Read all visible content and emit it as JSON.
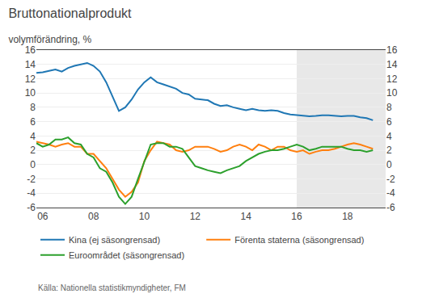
{
  "chart_data": {
    "type": "line",
    "title": "Bruttonationalprodukt",
    "subtitle": "volymförändring, %",
    "source": "Källa: Nationella statistikmyndigheter, FM",
    "forecast_start": 2016.0,
    "xlim": [
      2005.75,
      2019.5
    ],
    "xticks": [
      {
        "value": 2006,
        "label": "06"
      },
      {
        "value": 2008,
        "label": "08"
      },
      {
        "value": 2010,
        "label": "10"
      },
      {
        "value": 2012,
        "label": "12"
      },
      {
        "value": 2014,
        "label": "14"
      },
      {
        "value": 2016,
        "label": "16"
      },
      {
        "value": 2018,
        "label": "18"
      }
    ],
    "ylim": [
      -6,
      16
    ],
    "yticks": [
      -6,
      -4,
      -2,
      0,
      2,
      4,
      6,
      8,
      10,
      12,
      14,
      16
    ],
    "y2lim": [
      -6,
      16
    ],
    "y2ticks": [
      -6,
      -4,
      -2,
      0,
      2,
      4,
      6,
      8,
      10,
      12,
      14,
      16
    ],
    "grid": true,
    "legend": "bottom",
    "x": [
      2005.75,
      2006.0,
      2006.25,
      2006.5,
      2006.75,
      2007.0,
      2007.25,
      2007.5,
      2007.75,
      2008.0,
      2008.25,
      2008.5,
      2008.75,
      2009.0,
      2009.25,
      2009.5,
      2009.75,
      2010.0,
      2010.25,
      2010.5,
      2010.75,
      2011.0,
      2011.25,
      2011.5,
      2011.75,
      2012.0,
      2012.25,
      2012.5,
      2012.75,
      2013.0,
      2013.25,
      2013.5,
      2013.75,
      2014.0,
      2014.25,
      2014.5,
      2014.75,
      2015.0,
      2015.25,
      2015.5,
      2015.75,
      2016.0,
      2016.25,
      2016.5,
      2016.75,
      2017.0,
      2017.25,
      2017.5,
      2017.75,
      2018.0,
      2018.25,
      2018.5,
      2018.75,
      2019.0
    ],
    "series": [
      {
        "name": "Kina (ej säsongrensad)",
        "values": [
          12.8,
          12.9,
          13.1,
          13.3,
          13.0,
          13.5,
          13.8,
          14.0,
          14.2,
          13.8,
          13.0,
          11.5,
          9.5,
          7.5,
          8.0,
          9.1,
          10.5,
          11.5,
          12.2,
          11.5,
          11.2,
          10.9,
          10.6,
          10.0,
          9.8,
          9.2,
          9.1,
          9.0,
          8.5,
          8.2,
          8.3,
          8.0,
          7.8,
          7.6,
          7.8,
          7.6,
          7.5,
          7.6,
          7.5,
          7.2,
          7.0,
          6.9,
          6.8,
          6.75,
          6.8,
          6.9,
          6.9,
          6.8,
          6.75,
          6.8,
          6.8,
          6.6,
          6.5,
          6.2
        ]
      },
      {
        "name": "Förenta staterna (säsongrensad)",
        "values": [
          3.2,
          3.0,
          2.8,
          2.5,
          2.8,
          3.0,
          2.5,
          2.5,
          1.5,
          1.5,
          0.5,
          -0.5,
          -2.0,
          -3.5,
          -4.5,
          -3.8,
          -2.5,
          0.5,
          2.0,
          3.2,
          3.0,
          2.8,
          2.0,
          1.8,
          2.0,
          2.5,
          2.5,
          2.5,
          2.2,
          1.8,
          2.0,
          2.5,
          2.8,
          2.5,
          2.0,
          2.8,
          2.5,
          2.0,
          2.5,
          2.5,
          2.0,
          1.8,
          2.0,
          1.5,
          1.8,
          2.0,
          2.0,
          2.2,
          2.5,
          2.8,
          3.0,
          2.8,
          2.5,
          2.2
        ]
      },
      {
        "name": "Euroområdet (säsongrensad)",
        "values": [
          3.0,
          2.5,
          2.8,
          3.5,
          3.5,
          3.8,
          3.0,
          2.8,
          1.5,
          1.0,
          -0.5,
          -1.0,
          -2.5,
          -4.5,
          -5.5,
          -4.5,
          -2.0,
          0.5,
          2.8,
          3.0,
          3.0,
          2.5,
          2.5,
          2.2,
          1.0,
          -0.2,
          -0.5,
          -0.8,
          -1.0,
          -1.2,
          -0.8,
          -0.5,
          -0.2,
          0.5,
          1.0,
          1.5,
          1.8,
          2.0,
          2.0,
          2.2,
          2.5,
          2.8,
          2.5,
          2.0,
          2.2,
          2.5,
          2.5,
          2.5,
          2.5,
          2.2,
          2.0,
          2.0,
          1.8,
          2.0
        ]
      }
    ]
  }
}
